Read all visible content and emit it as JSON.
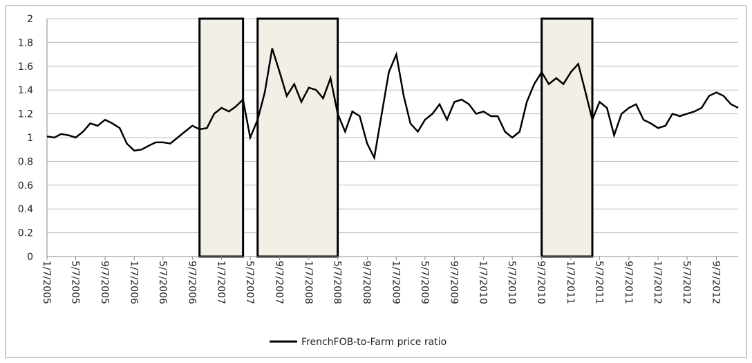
{
  "chart_data": {
    "type": "line",
    "x": [
      "1/7/2005",
      "2/7/2005",
      "3/7/2005",
      "4/7/2005",
      "5/7/2005",
      "6/7/2005",
      "7/7/2005",
      "8/7/2005",
      "9/7/2005",
      "10/7/2005",
      "11/7/2005",
      "12/7/2005",
      "1/7/2006",
      "2/7/2006",
      "3/7/2006",
      "4/7/2006",
      "5/7/2006",
      "6/7/2006",
      "7/7/2006",
      "8/7/2006",
      "9/7/2006",
      "10/7/2006",
      "11/7/2006",
      "12/7/2006",
      "1/7/2007",
      "2/7/2007",
      "3/7/2007",
      "4/7/2007",
      "5/7/2007",
      "6/7/2007",
      "7/7/2007",
      "8/7/2007",
      "9/7/2007",
      "10/7/2007",
      "11/7/2007",
      "12/7/2007",
      "1/7/2008",
      "2/7/2008",
      "3/7/2008",
      "4/7/2008",
      "5/7/2008",
      "6/7/2008",
      "7/7/2008",
      "8/7/2008",
      "9/7/2008",
      "10/7/2008",
      "11/7/2008",
      "12/7/2008",
      "1/7/2009",
      "2/7/2009",
      "3/7/2009",
      "4/7/2009",
      "5/7/2009",
      "6/7/2009",
      "7/7/2009",
      "8/7/2009",
      "9/7/2009",
      "10/7/2009",
      "11/7/2009",
      "12/7/2009",
      "1/7/2010",
      "2/7/2010",
      "3/7/2010",
      "4/7/2010",
      "5/7/2010",
      "6/7/2010",
      "7/7/2010",
      "8/7/2010",
      "9/7/2010",
      "10/7/2010",
      "11/7/2010",
      "12/7/2010",
      "1/7/2011",
      "2/7/2011",
      "3/7/2011",
      "4/7/2011",
      "5/7/2011",
      "6/7/2011",
      "7/7/2011",
      "8/7/2011",
      "9/7/2011",
      "10/7/2011",
      "11/7/2011",
      "12/7/2011",
      "1/7/2012",
      "2/7/2012",
      "3/7/2012",
      "4/7/2012",
      "5/7/2012",
      "6/7/2012",
      "7/7/2012",
      "8/7/2012",
      "9/7/2012",
      "10/7/2012",
      "11/7/2012",
      "12/7/2012"
    ],
    "series": [
      {
        "name": "FrenchFOB-to-Farm price ratio",
        "color": "#000000",
        "values": [
          1.01,
          1.0,
          1.03,
          1.02,
          1.0,
          1.05,
          1.12,
          1.1,
          1.15,
          1.12,
          1.08,
          0.95,
          0.89,
          0.9,
          0.93,
          0.96,
          0.96,
          0.95,
          1.0,
          1.05,
          1.1,
          1.07,
          1.08,
          1.2,
          1.25,
          1.22,
          1.26,
          1.32,
          1.0,
          1.15,
          1.38,
          1.75,
          1.55,
          1.35,
          1.45,
          1.3,
          1.42,
          1.4,
          1.33,
          1.5,
          1.2,
          1.05,
          1.22,
          1.18,
          0.95,
          0.83,
          1.2,
          1.55,
          1.7,
          1.35,
          1.12,
          1.05,
          1.15,
          1.2,
          1.28,
          1.15,
          1.3,
          1.32,
          1.28,
          1.2,
          1.22,
          1.18,
          1.18,
          1.05,
          1.0,
          1.05,
          1.3,
          1.45,
          1.55,
          1.45,
          1.5,
          1.45,
          1.55,
          1.62,
          1.4,
          1.15,
          1.3,
          1.25,
          1.02,
          1.2,
          1.25,
          1.28,
          1.15,
          1.12,
          1.08,
          1.1,
          1.2,
          1.18,
          1.2,
          1.22,
          1.25,
          1.35,
          1.38,
          1.35,
          1.28,
          1.25
        ]
      }
    ],
    "xlim": [
      "1/7/2005",
      "12/7/2012"
    ],
    "xticks": [
      "1/7/2005",
      "5/7/2005",
      "9/7/2005",
      "1/7/2006",
      "5/7/2006",
      "9/7/2006",
      "1/7/2007",
      "5/7/2007",
      "9/7/2007",
      "1/7/2008",
      "5/7/2008",
      "9/7/2008",
      "1/7/2009",
      "5/7/2009",
      "9/7/2009",
      "1/7/2010",
      "5/7/2010",
      "9/7/2010",
      "1/7/2011",
      "5/7/2011",
      "9/7/2011",
      "1/7/2012",
      "5/7/2012",
      "9/7/2012"
    ],
    "ylim": [
      0,
      2
    ],
    "yticks": [
      0,
      0.2,
      0.4,
      0.6,
      0.8,
      1,
      1.2,
      1.4,
      1.6,
      1.8,
      2
    ],
    "grid": true,
    "legend": "bottom",
    "shaded_periods": [
      [
        "10/7/2006",
        "4/7/2007"
      ],
      [
        "6/7/2007",
        "5/7/2008"
      ],
      [
        "9/7/2010",
        "4/7/2011"
      ]
    ]
  }
}
